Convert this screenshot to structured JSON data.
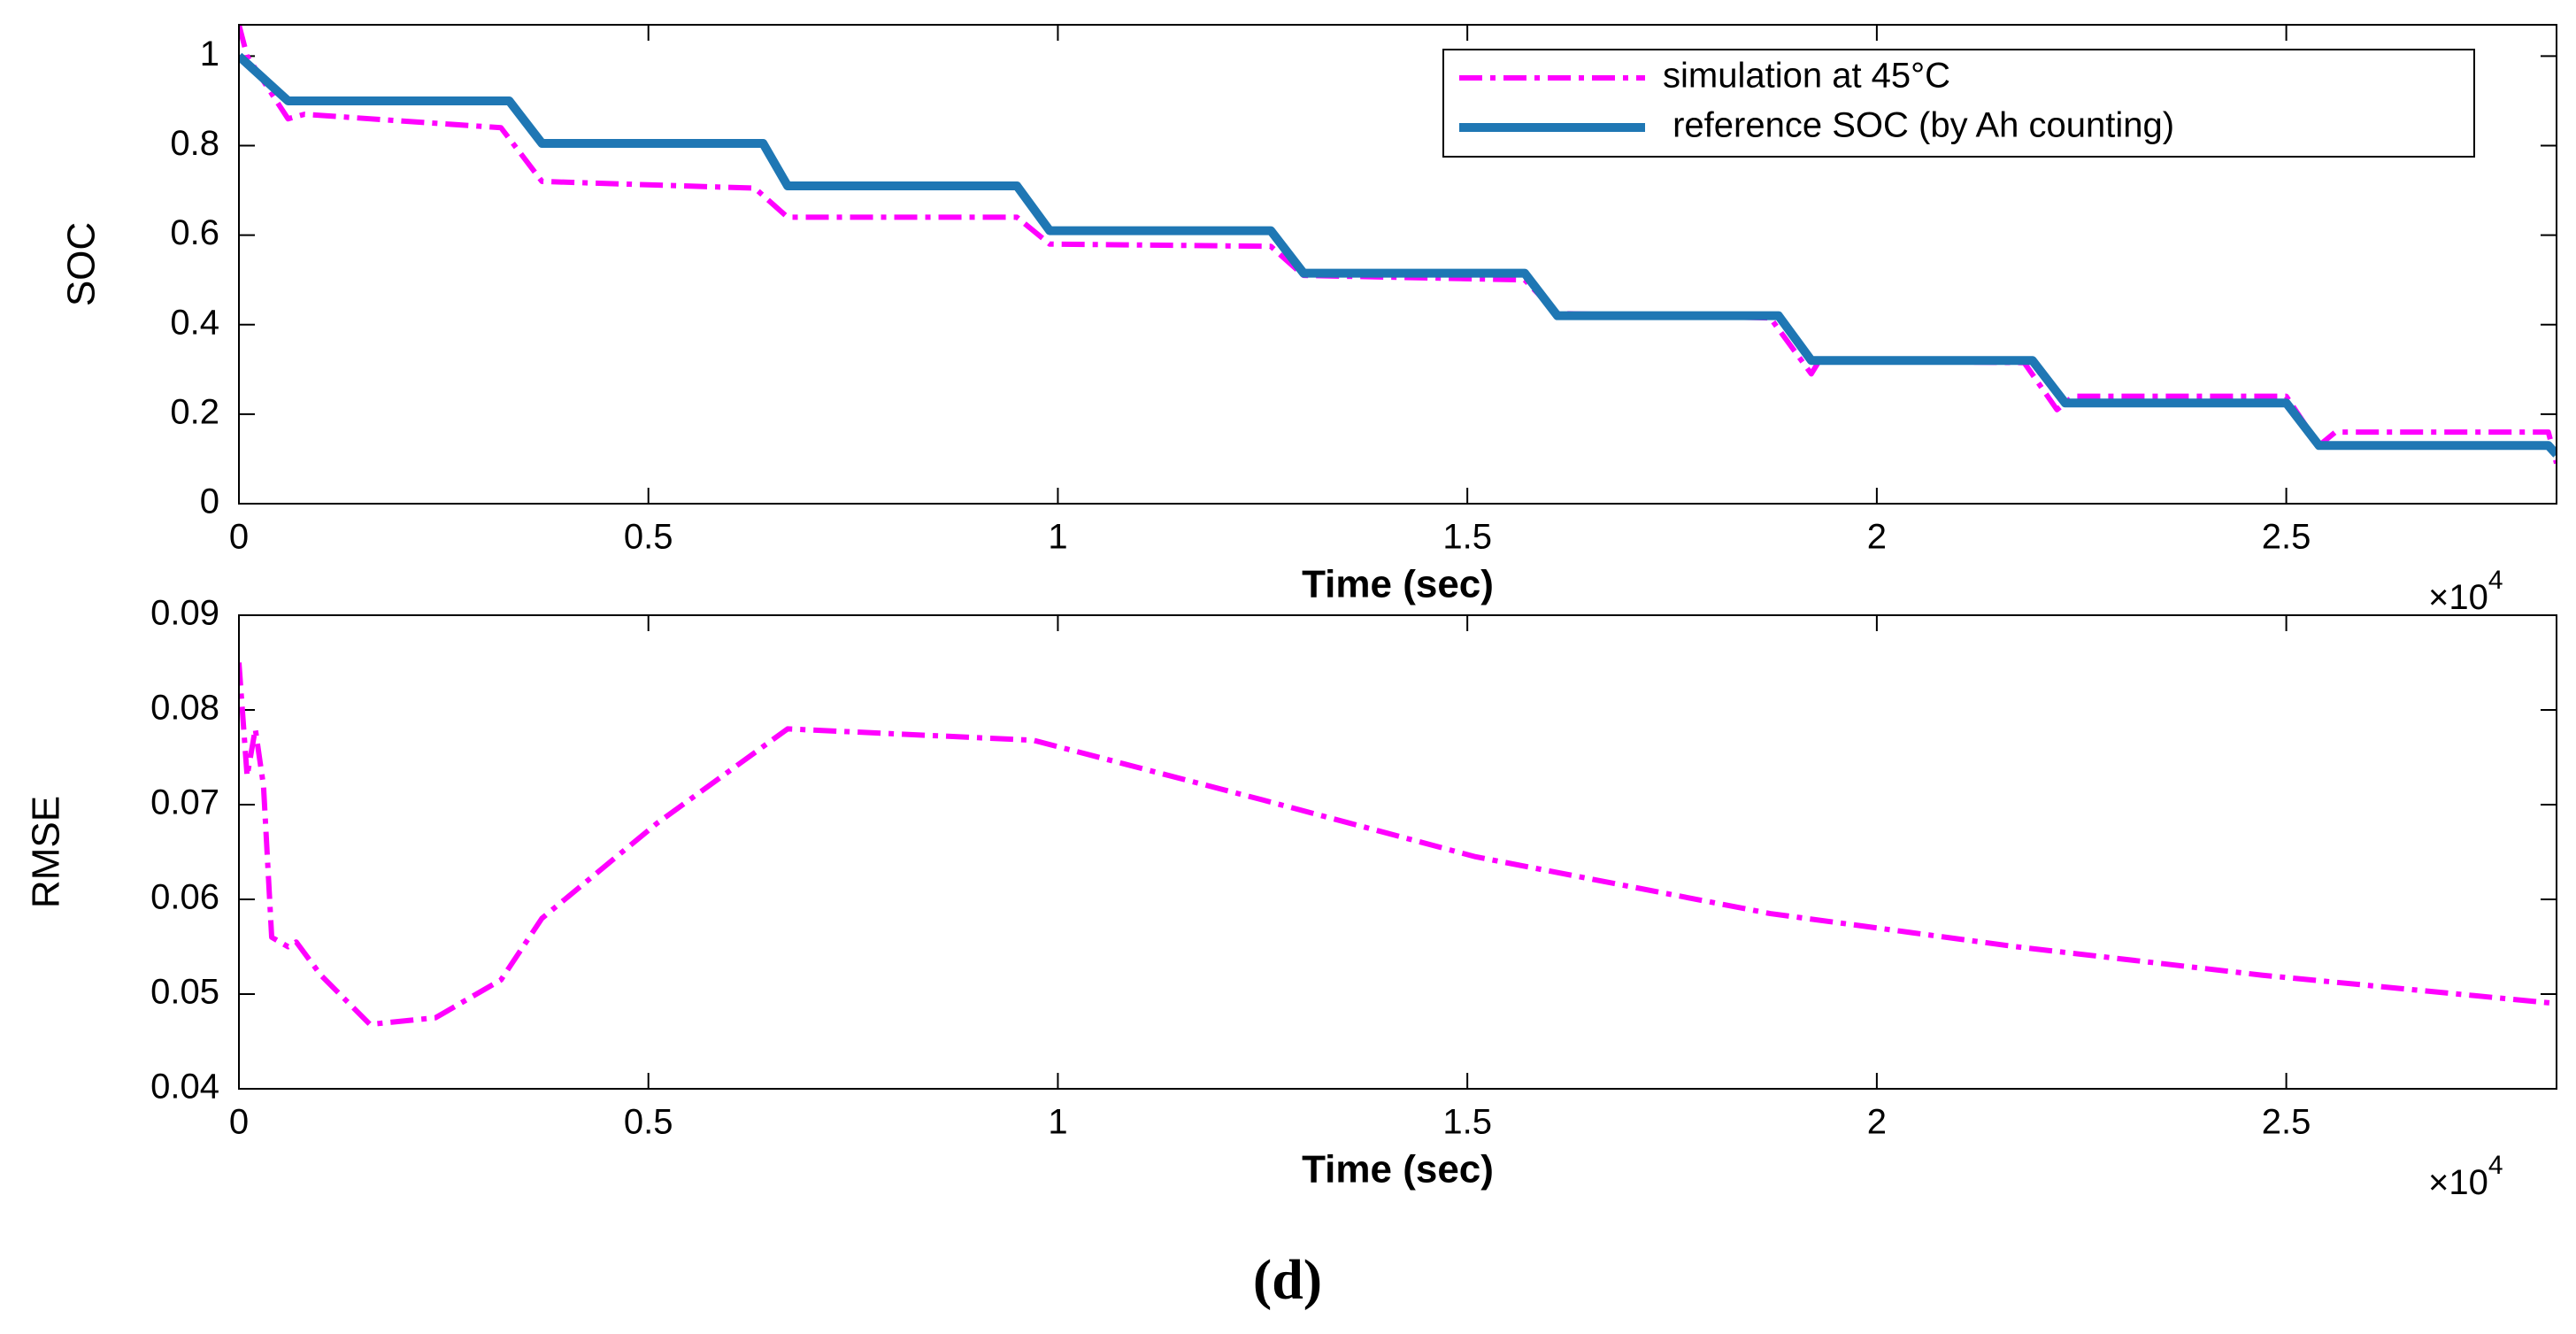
{
  "chart_data": [
    {
      "type": "line",
      "xlabel": "Time (sec)",
      "ylabel": "SOC",
      "x_multiplier": {
        "base": "×10",
        "power": "4"
      },
      "xlim": [
        0,
        2.83
      ],
      "xticks": [
        0,
        0.5,
        1,
        1.5,
        2,
        2.5
      ],
      "ylim": [
        0,
        1.07
      ],
      "yticks": [
        0,
        0.2,
        0.4,
        0.6,
        0.8,
        1
      ],
      "legend": "upper right",
      "series": [
        {
          "name": "simulation at 45°C",
          "color": "#ff00ff",
          "linestyle": "dashdot",
          "x": [
            0,
            0.01,
            0.06,
            0.08,
            0.32,
            0.37,
            0.63,
            0.67,
            0.95,
            0.99,
            1.26,
            1.3,
            1.57,
            1.61,
            1.87,
            1.92,
            1.93,
            2.18,
            2.22,
            2.24,
            2.5,
            2.54,
            2.56,
            2.82,
            2.83
          ],
          "values": [
            1.07,
            1.0,
            0.86,
            0.87,
            0.84,
            0.72,
            0.705,
            0.64,
            0.64,
            0.58,
            0.575,
            0.51,
            0.5,
            0.425,
            0.415,
            0.29,
            0.32,
            0.315,
            0.21,
            0.24,
            0.24,
            0.13,
            0.16,
            0.16,
            0.09
          ]
        },
        {
          "name": " reference SOC (by Ah counting)",
          "color": "#1f77b4",
          "linestyle": "solid",
          "x": [
            0,
            0.06,
            0.33,
            0.37,
            0.64,
            0.67,
            0.95,
            0.99,
            1.26,
            1.3,
            1.57,
            1.61,
            1.88,
            1.92,
            2.19,
            2.23,
            2.5,
            2.54,
            2.82,
            2.83
          ],
          "values": [
            1.0,
            0.9,
            0.9,
            0.805,
            0.805,
            0.71,
            0.71,
            0.61,
            0.61,
            0.515,
            0.515,
            0.42,
            0.42,
            0.32,
            0.32,
            0.225,
            0.225,
            0.13,
            0.13,
            0.11
          ]
        }
      ]
    },
    {
      "type": "line",
      "xlabel": "Time (sec)",
      "ylabel": "RMSE",
      "x_multiplier": {
        "base": "×10",
        "power": "4"
      },
      "xlim": [
        0,
        2.83
      ],
      "xticks": [
        0,
        0.5,
        1,
        1.5,
        2,
        2.5
      ],
      "ylim": [
        0.04,
        0.09
      ],
      "yticks": [
        0.04,
        0.05,
        0.06,
        0.07,
        0.08,
        0.09
      ],
      "series": [
        {
          "color": "#ff00ff",
          "linestyle": "dashdot",
          "x": [
            0,
            0.01,
            0.02,
            0.03,
            0.04,
            0.06,
            0.07,
            0.1,
            0.16,
            0.24,
            0.32,
            0.37,
            0.51,
            0.67,
            0.97,
            1.25,
            1.51,
            1.87,
            2.17,
            2.47,
            2.83
          ],
          "values": [
            0.085,
            0.073,
            0.078,
            0.072,
            0.056,
            0.055,
            0.0555,
            0.052,
            0.0468,
            0.0475,
            0.0515,
            0.058,
            0.068,
            0.078,
            0.0768,
            0.0705,
            0.0645,
            0.0585,
            0.055,
            0.052,
            0.049
          ]
        }
      ]
    }
  ],
  "caption": "(d)"
}
